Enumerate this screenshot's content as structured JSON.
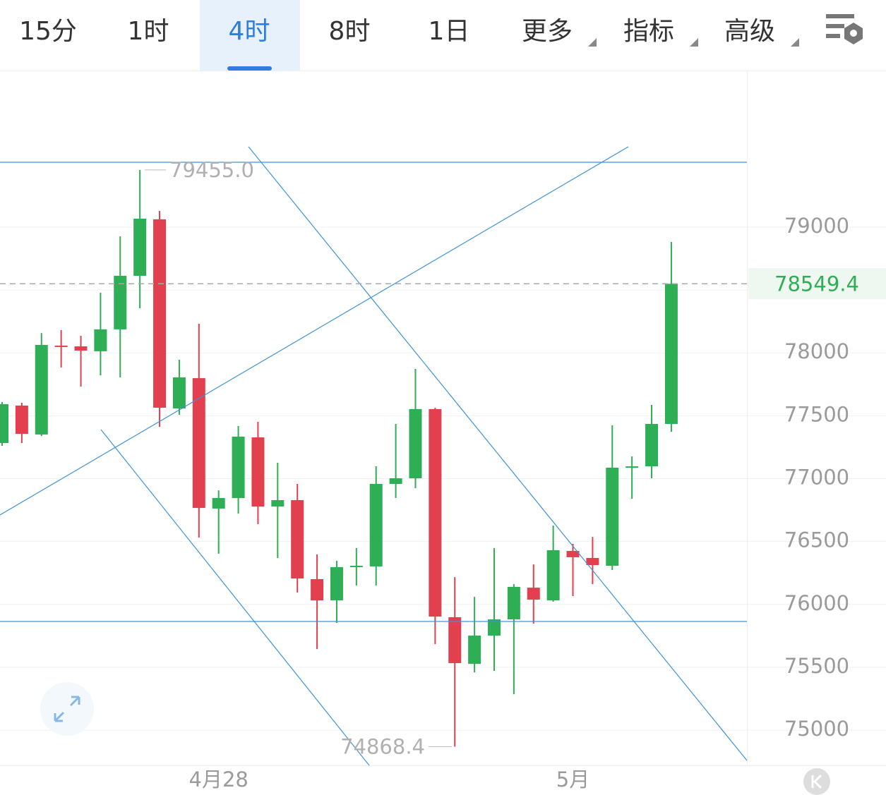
{
  "toolbar": {
    "tabs": [
      "15分",
      "1时",
      "4时",
      "8时",
      "1日",
      "更多",
      "指标",
      "高级"
    ],
    "selected": 2
  },
  "chart_data": {
    "type": "candlestick",
    "categories": [
      null,
      null,
      null,
      null,
      null,
      null,
      null,
      null,
      null,
      null,
      null,
      "4月28",
      null,
      null,
      null,
      null,
      null,
      null,
      null,
      null,
      null,
      null,
      null,
      null,
      null,
      null,
      null,
      null,
      null,
      "5月",
      null,
      null,
      null,
      null,
      null
    ],
    "open": [
      77283,
      77581,
      77351,
      78058,
      78052,
      78013,
      78187,
      78613,
      79062,
      77558,
      77799,
      76762,
      76846,
      77328,
      76778,
      76829,
      76201,
      76032,
      76302,
      76302,
      76958,
      77003,
      77553,
      75898,
      75527,
      75752,
      75881,
      76133,
      76032,
      76425,
      76369,
      76307,
      77093,
      77098,
      77435
    ],
    "high": [
      77609,
      77603,
      78158,
      78181,
      78136,
      78478,
      78927,
      79455,
      79129,
      77945,
      78231,
      76907,
      77418,
      77452,
      77126,
      76958,
      76397,
      76347,
      76448,
      77098,
      77435,
      77872,
      77564,
      76217,
      76060,
      76448,
      76161,
      76318,
      76627,
      76481,
      76537,
      77424,
      77177,
      77586,
      78882
    ],
    "low": [
      77261,
      77283,
      77339,
      77884,
      77732,
      77822,
      77805,
      78355,
      77412,
      77508,
      76532,
      76403,
      76722,
      76638,
      76369,
      76094,
      75645,
      75853,
      76150,
      76150,
      76846,
      76924,
      75684,
      74868.4,
      75460,
      75471,
      75286,
      75847,
      76021,
      76066,
      76161,
      76274,
      76840,
      77003,
      77373
    ],
    "close": [
      77592,
      77356,
      78063,
      78052,
      78018,
      78187,
      78613,
      79067,
      77564,
      77805,
      76767,
      76846,
      77334,
      76778,
      76829,
      76206,
      76032,
      76296,
      76307,
      76958,
      77003,
      77553,
      75903,
      75533,
      75752,
      75881,
      76139,
      76038,
      76431,
      76375,
      76313,
      77087,
      77098,
      77435,
      78549.4
    ],
    "up_color": "#2eae55",
    "down_color": "#e2404f",
    "ylim": [
      74720,
      80245
    ],
    "yticks": [
      75000,
      75500,
      76000,
      76500,
      77000,
      77500,
      78000,
      78500,
      79000
    ],
    "last_price": 78549.4,
    "high_label": {
      "value": 79455,
      "label": "79455.0"
    },
    "low_label": 74868.4,
    "grid": true
  }
}
